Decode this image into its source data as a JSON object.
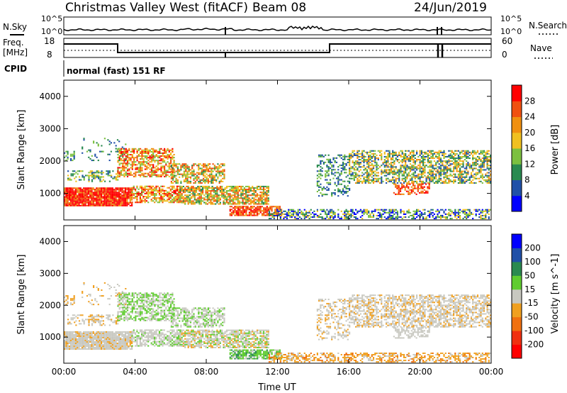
{
  "header": {
    "title": "Christmas Valley West (fitACF)",
    "beam": "Beam 08",
    "date": "24/Jun/2019"
  },
  "top_panels": {
    "nsky_label": "N.Sky",
    "nsearch_label": "N.Search",
    "noise_ticks": [
      "10^5",
      "10^0"
    ],
    "freq_label": "Freq.",
    "freq_unit": "[MHz]",
    "freq_ticks": [
      "18",
      "8"
    ],
    "nave_label": "Nave",
    "nave_ticks": [
      "60",
      "0"
    ],
    "cpid_label": "CPID",
    "cpid_value": "normal (fast) 151 RF"
  },
  "chart_data": [
    {
      "type": "heatmap",
      "name": "power",
      "ylabel": "Slant Range [km]",
      "yticks": [
        1000,
        2000,
        3000,
        4000
      ],
      "ylim": [
        180,
        4500
      ],
      "colorbar_label": "Power [dB]",
      "colorbar_ticks": [
        4,
        8,
        12,
        16,
        20,
        24,
        28
      ],
      "colors": [
        "#0000ff",
        "#2050a8",
        "#2a8a50",
        "#7cc040",
        "#f0c020",
        "#f09010",
        "#f05010",
        "#ff0000"
      ]
    },
    {
      "type": "heatmap",
      "name": "velocity",
      "ylabel": "Slant Range [km]",
      "yticks": [
        1000,
        2000,
        3000,
        4000
      ],
      "ylim": [
        180,
        4500
      ],
      "xlabel": "Time UT",
      "xticks": [
        "00:00",
        "04:00",
        "08:00",
        "12:00",
        "16:00",
        "20:00",
        "00:00"
      ],
      "xlim_hours": [
        0,
        24
      ],
      "colorbar_label": "Velocity [m s^-1]",
      "colorbar_ticks": [
        200,
        100,
        50,
        15,
        -15,
        -50,
        -100,
        -200
      ],
      "colors": [
        "#0000ff",
        "#2050a8",
        "#2a8a50",
        "#60cc30",
        "#c8c8c0",
        "#f0a020",
        "#f07010",
        "#f03010",
        "#ff0000"
      ]
    }
  ]
}
